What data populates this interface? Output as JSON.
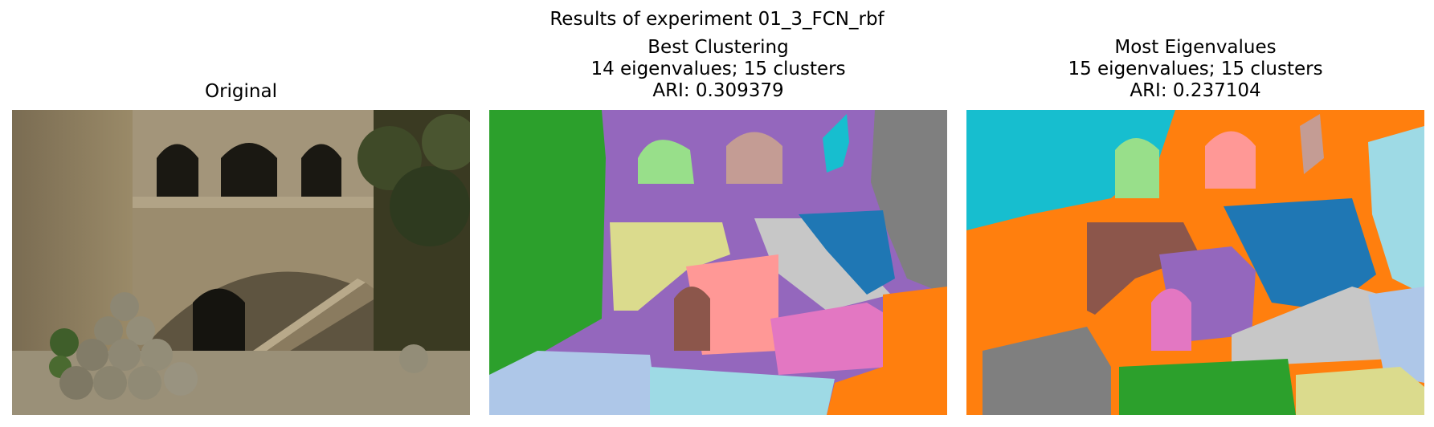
{
  "figure": {
    "suptitle": "Results of experiment 01_3_FCN_rbf"
  },
  "panels": [
    {
      "id": "original",
      "title_lines": [
        "Original"
      ],
      "image": "photo of stone courtyard with arches, staircase and cannonballs"
    },
    {
      "id": "best",
      "title_lines": [
        "Best Clustering",
        "14 eigenvalues; 15 clusters",
        "ARI: 0.309379"
      ],
      "image": "segmentation map"
    },
    {
      "id": "most",
      "title_lines": [
        "Most Eigenvalues",
        "15 eigenvalues; 15 clusters",
        "ARI: 0.237104"
      ],
      "image": "segmentation map"
    }
  ],
  "colors": {
    "tab_blue": "#1f77b4",
    "tab_orange": "#ff7f0e",
    "tab_green": "#2ca02c",
    "tab_purple": "#9467bd",
    "tab_brown": "#8c564b",
    "tab_pink": "#e377c2",
    "tab_gray": "#7f7f7f",
    "tab_olive": "#dbdb8d",
    "tab_cyan": "#17becf",
    "light_green": "#98df8a",
    "light_pink": "#ff9896",
    "light_brown": "#c49c94",
    "light_gray": "#c7c7c7",
    "light_blue": "#aec7e8",
    "light_cyan": "#9edae5"
  }
}
